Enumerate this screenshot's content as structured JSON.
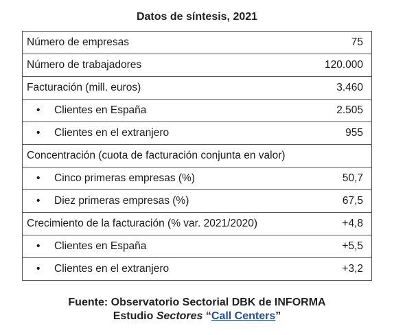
{
  "title": "Datos de síntesis, 2021",
  "rows": [
    {
      "label": "Número de empresas",
      "value": "75"
    },
    {
      "label": "Número de trabajadores",
      "value": "120.000"
    },
    {
      "label": "Facturación (mill. euros)",
      "value": "3.460"
    },
    {
      "bullet": "•",
      "label": "Clientes en España",
      "value": "2.505"
    },
    {
      "bullet": "•",
      "label": "Clientes en el extranjero",
      "value": "955"
    },
    {
      "label": "Concentración (cuota de facturación conjunta en valor)",
      "value": ""
    },
    {
      "bullet": "•",
      "label": "Cinco primeras empresas (%)",
      "value": "50,7"
    },
    {
      "bullet": "•",
      "label": "Diez primeras empresas (%)",
      "value": "67,5"
    },
    {
      "label": "Crecimiento de la facturación (% var. 2021/2020)",
      "value": "+4,8"
    },
    {
      "bullet": "•",
      "label": "Clientes en España",
      "value": "+5,5"
    },
    {
      "bullet": "•",
      "label": "Clientes en el extranjero",
      "value": "+3,2"
    }
  ],
  "footer": {
    "source": "Fuente: Observatorio Sectorial DBK de INFORMA",
    "study_prefix": "Estudio ",
    "study_italic": "Sectores",
    "quote_open": " “",
    "link_text": "Call Centers",
    "quote_close": "”"
  }
}
